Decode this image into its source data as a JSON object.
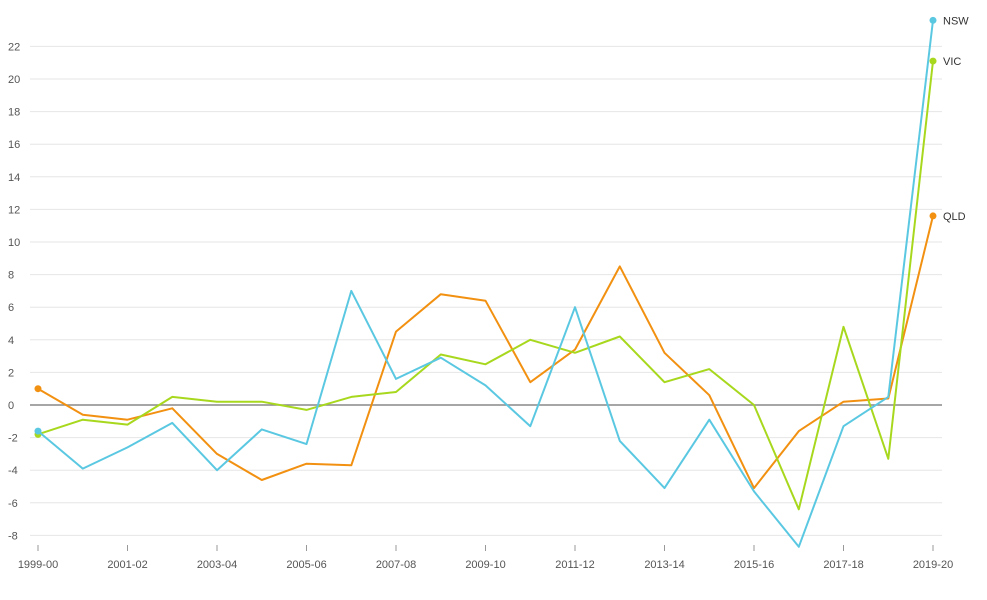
{
  "chart_data": {
    "type": "line",
    "title": "",
    "xlabel": "",
    "ylabel": "",
    "ylim": [
      -8,
      24
    ],
    "y_ticks": [
      -8,
      -6,
      -4,
      -2,
      0,
      2,
      4,
      6,
      8,
      10,
      12,
      14,
      16,
      18,
      20,
      22
    ],
    "grid": true,
    "legend": "inline labels at line ends (right)",
    "x": [
      "1999-00",
      "2000-01",
      "2001-02",
      "2002-03",
      "2003-04",
      "2004-05",
      "2005-06",
      "2006-07",
      "2007-08",
      "2008-09",
      "2009-10",
      "2010-11",
      "2011-12",
      "2012-13",
      "2013-14",
      "2014-15",
      "2015-16",
      "2016-17",
      "2017-18",
      "2018-19",
      "2019-20"
    ],
    "x_tick_labels": [
      "1999-00",
      "2001-02",
      "2003-04",
      "2005-06",
      "2007-08",
      "2009-10",
      "2011-12",
      "2013-14",
      "2015-16",
      "2017-18",
      "2019-20"
    ],
    "series": [
      {
        "name": "NSW",
        "color": "#5bc8e2",
        "values": [
          -1.6,
          -3.9,
          -2.6,
          -1.1,
          -4.0,
          -1.5,
          -2.4,
          7.0,
          1.6,
          2.9,
          1.2,
          -1.3,
          6.0,
          -2.2,
          -5.1,
          -0.9,
          -5.3,
          -8.7,
          -1.3,
          0.5,
          23.6
        ]
      },
      {
        "name": "VIC",
        "color": "#a8d81e",
        "values": [
          -1.8,
          -0.9,
          -1.2,
          0.5,
          0.2,
          0.2,
          -0.3,
          0.5,
          0.8,
          3.1,
          2.5,
          4.0,
          3.2,
          4.2,
          1.4,
          2.2,
          0.0,
          -6.4,
          4.8,
          -3.3,
          21.1
        ]
      },
      {
        "name": "QLD",
        "color": "#f29111",
        "values": [
          1.0,
          -0.6,
          -0.9,
          -0.2,
          -3.0,
          -4.6,
          -3.6,
          -3.7,
          4.5,
          6.8,
          6.4,
          1.4,
          3.4,
          8.5,
          3.2,
          0.6,
          -5.1,
          -1.6,
          0.2,
          0.4,
          11.6
        ]
      }
    ]
  }
}
